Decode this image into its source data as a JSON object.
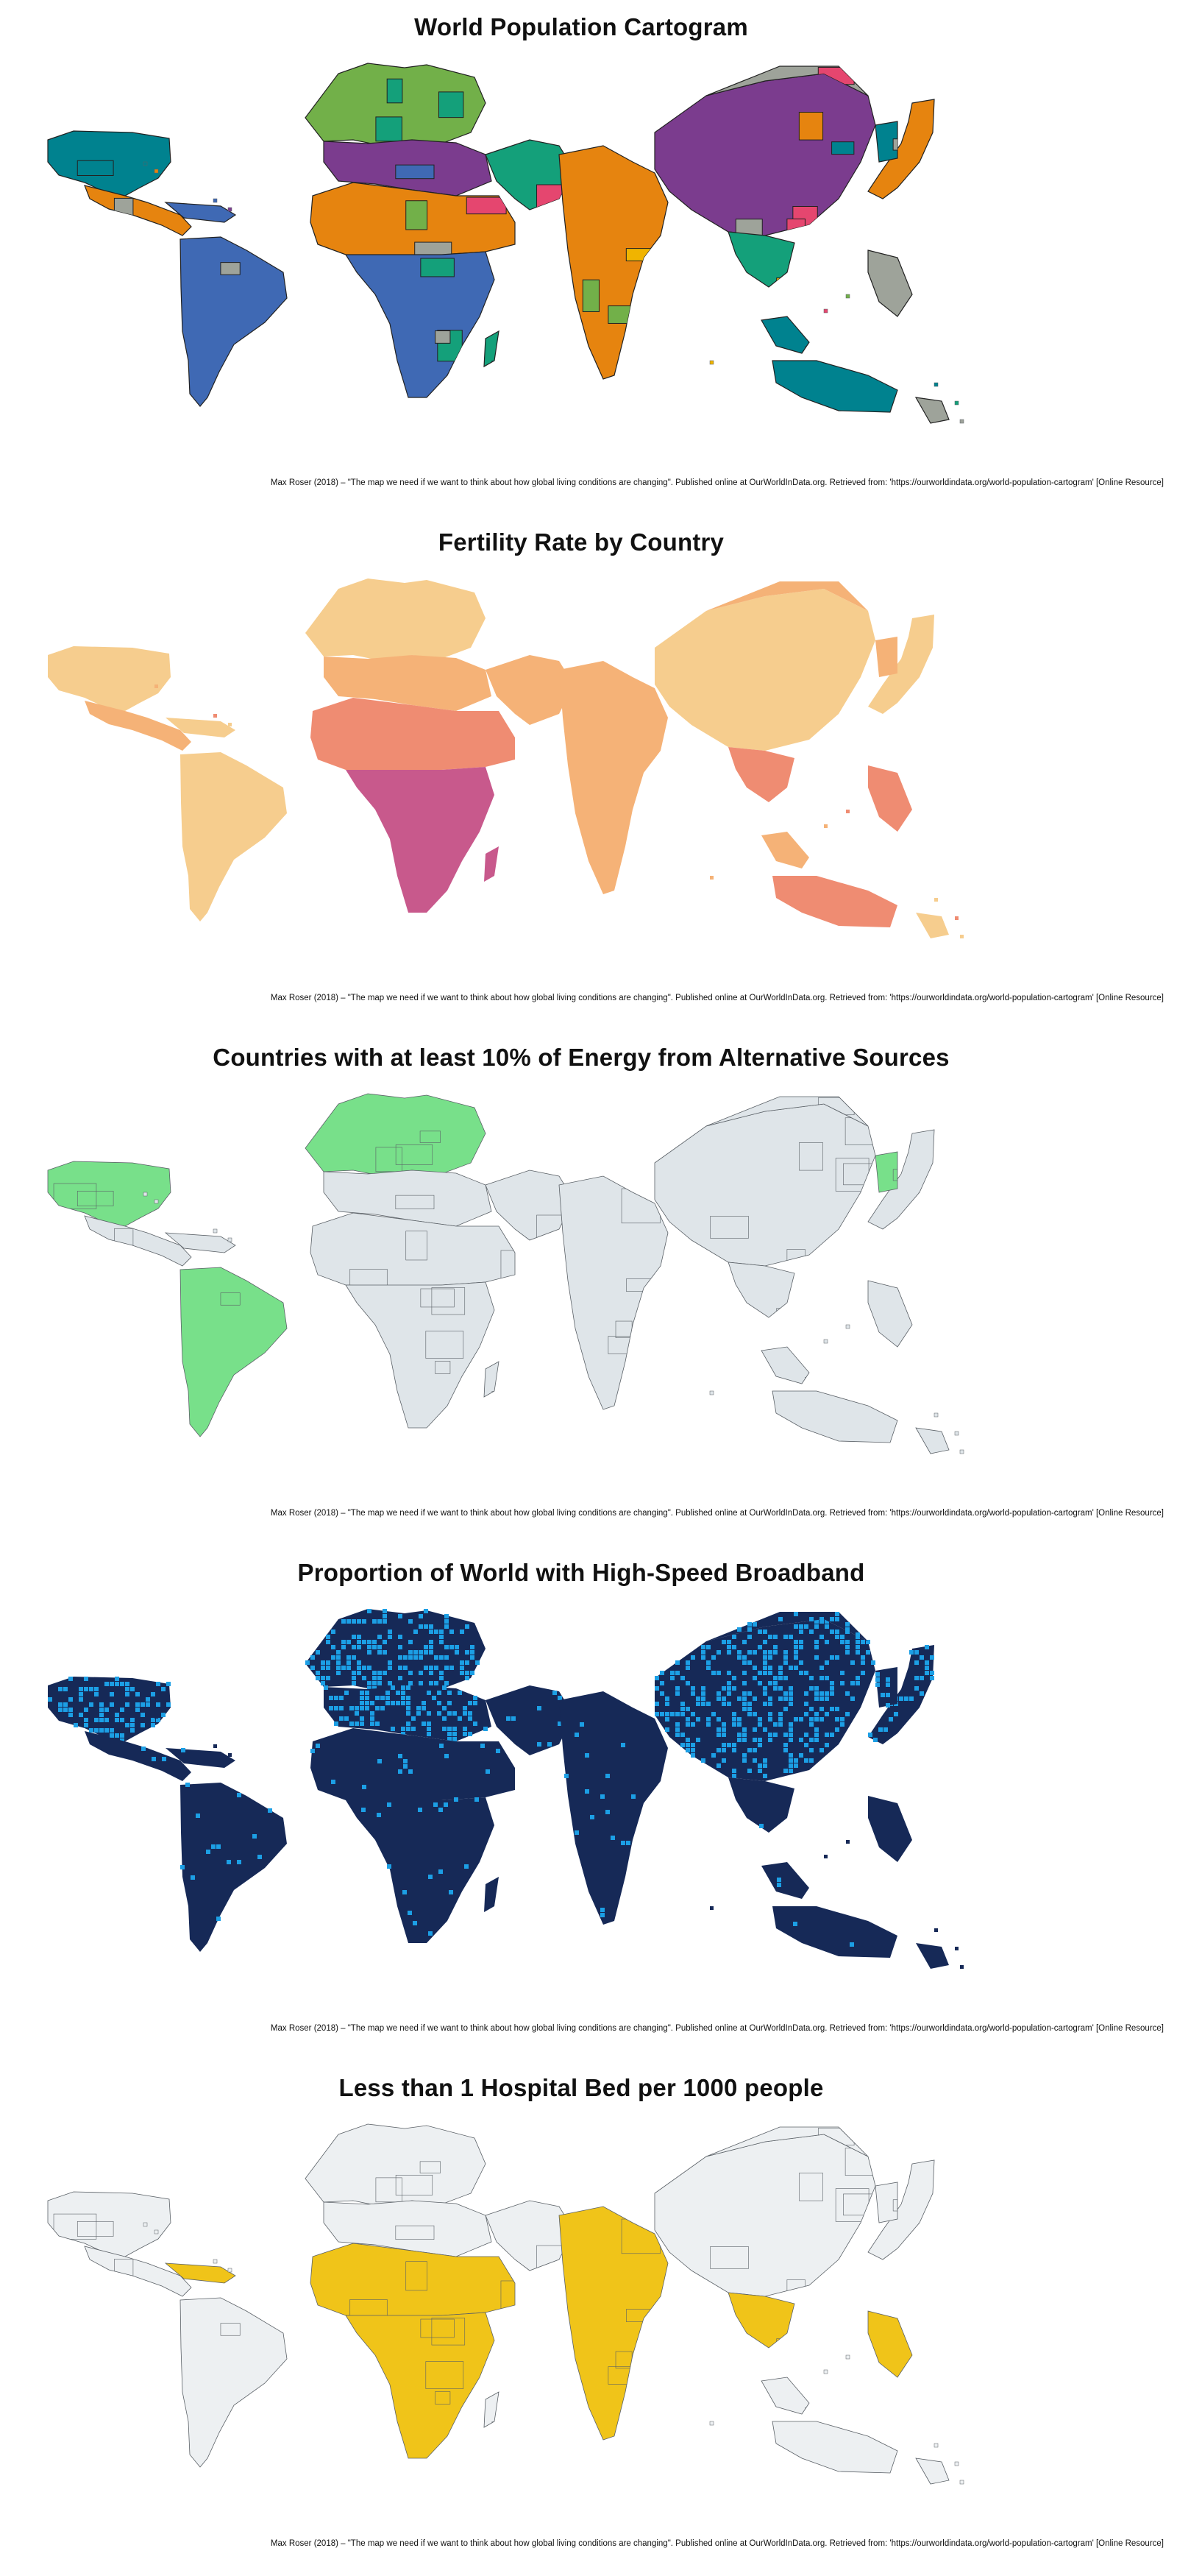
{
  "credit": "Max Roser (2018) – \"The map we need if we want to think about how global living conditions are changing\". Published online at OurWorldInData.org. Retrieved from: 'https://ourworldindata.org/world-population-cartogram' [Online Resource]",
  "maps": [
    {
      "title": "World Population Cartogram",
      "style": "population"
    },
    {
      "title": "Fertility Rate by Country",
      "style": "fertility"
    },
    {
      "title": "Countries with at least 10% of Energy from Alternative Sources",
      "style": "energy"
    },
    {
      "title": "Proportion of World with High-Speed Broadband",
      "style": "broadband"
    },
    {
      "title": "Less than 1 Hospital Bed per 1000 people",
      "style": "beds"
    }
  ],
  "colors": {
    "population": [
      "#00828f",
      "#e6840f",
      "#3f69b4",
      "#7b3c8e",
      "#f0b400",
      "#14a07a",
      "#9ea39a",
      "#e5466f",
      "#72b049"
    ],
    "fertility": [
      "#f6cd8e",
      "#f5b277",
      "#ef8c72",
      "#c8598c",
      "#9a4f9e",
      "#eaeaea"
    ],
    "energy_highlight": "#78e08a",
    "energy_other": "#dfe5e9",
    "broadband_dark": "#162957",
    "broadband_light": "#1c9fe5",
    "beds_highlight": "#f0c419",
    "beds_other": "#edf0f2",
    "outline": "#5a6066"
  }
}
